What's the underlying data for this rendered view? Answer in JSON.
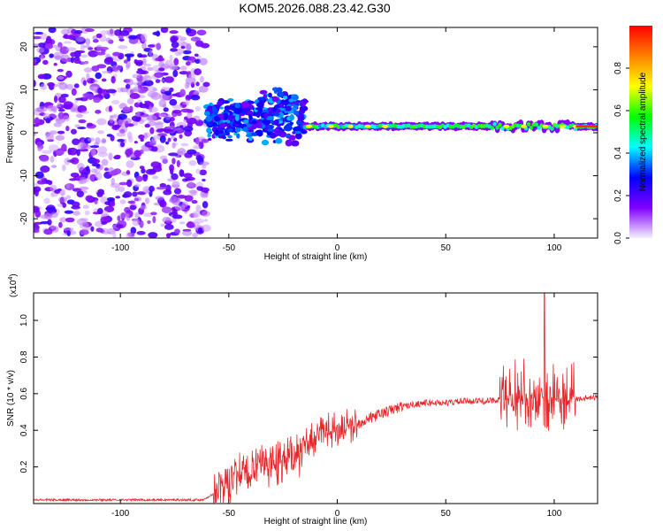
{
  "title": "KOM5.2026.088.23.42.G30",
  "colors": {
    "snr_line": "#e8272a",
    "spec_outline": "#5010e0",
    "axis": "#000000"
  },
  "chart_data": [
    {
      "type": "heatmap",
      "name": "spectrogram",
      "xlabel": "Height of straight line (km)",
      "ylabel": "Frequency (Hz)",
      "xlim": [
        -140,
        120
      ],
      "ylim": [
        -24.5,
        24.5
      ],
      "xticks": [
        -100,
        -50,
        0,
        50,
        100
      ],
      "yticks": [
        -20,
        -10,
        0,
        10,
        20
      ],
      "xtick_labels": [
        "-100",
        "-50",
        "0",
        "50",
        "100"
      ],
      "ytick_labels": [
        "-20",
        "-10",
        "0",
        "10",
        "20"
      ],
      "regions": [
        {
          "label": "noise",
          "x_range": [
            -140,
            -60
          ],
          "freq_range": [
            -24,
            24
          ],
          "amplitude": 0.15
        },
        {
          "label": "multipath",
          "x_range": [
            -60,
            -15
          ],
          "freq_range": [
            -2,
            10
          ],
          "amplitude": 0.3
        },
        {
          "label": "tone",
          "x_range": [
            -15,
            120
          ],
          "freq": 1.5,
          "amplitude": 0.55
        }
      ],
      "colorbar": {
        "label": "Normalized spectral amplitude",
        "range": [
          0,
          1
        ],
        "ticks": [
          0.0,
          0.2,
          0.4,
          0.6,
          0.8
        ],
        "tick_labels": [
          "0.0",
          "0.2",
          "0.4",
          "0.6",
          "0.8"
        ],
        "colormap": [
          "#f5f0ff",
          "#8000ff",
          "#0000ff",
          "#00ffff",
          "#00ff00",
          "#ffff00",
          "#ff8000",
          "#ff0000"
        ]
      }
    },
    {
      "type": "line",
      "name": "snr",
      "xlabel": "Height of straight line (km)",
      "ylabel": "SNR (10 * v/v)",
      "yscale_label": "(x10",
      "yscale_exp": "4",
      "yscale_close": ")",
      "xlim": [
        -140,
        120
      ],
      "ylim": [
        0,
        1.15
      ],
      "xticks": [
        -100,
        -50,
        0,
        50,
        100
      ],
      "yticks": [
        0.2,
        0.4,
        0.6,
        0.8,
        1.0
      ],
      "xtick_labels": [
        "-100",
        "-50",
        "0",
        "50",
        "100"
      ],
      "ytick_labels": [
        "0.2",
        "0.4",
        "0.6",
        "0.8",
        "1.0"
      ],
      "series": [
        {
          "name": "SNR",
          "x": [
            -140,
            -100,
            -62,
            -56,
            -50,
            -40,
            -30,
            -20,
            -16,
            -10,
            0,
            10,
            20,
            30,
            40,
            50,
            60,
            70,
            75,
            80,
            90,
            100,
            110,
            120
          ],
          "y": [
            0.02,
            0.02,
            0.02,
            0.06,
            0.13,
            0.18,
            0.23,
            0.26,
            0.3,
            0.36,
            0.41,
            0.44,
            0.49,
            0.53,
            0.55,
            0.55,
            0.56,
            0.56,
            0.57,
            0.57,
            0.57,
            0.57,
            0.57,
            0.58
          ]
        }
      ]
    }
  ]
}
